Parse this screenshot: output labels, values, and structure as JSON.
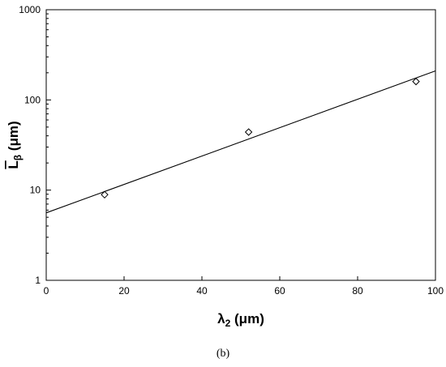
{
  "chart_data": {
    "type": "scatter",
    "xlabel": {
      "base": "λ",
      "sub": "2",
      "unit": " (μm)"
    },
    "ylabel": {
      "base": "L",
      "sub": "β",
      "unit": " (μm)"
    },
    "xlim": [
      0,
      100
    ],
    "ylim": [
      1,
      1000
    ],
    "yscale": "log",
    "grid": false,
    "xticks": [
      0,
      20,
      40,
      60,
      80,
      100
    ],
    "xtick_labels": [
      "0",
      "20",
      "40",
      "60",
      "80",
      "100"
    ],
    "yticks": [
      1,
      10,
      100,
      1000
    ],
    "ytick_labels": [
      "1",
      "10",
      "100",
      "1000"
    ],
    "points": [
      {
        "x": 15,
        "y": 8.9
      },
      {
        "x": 52,
        "y": 44
      },
      {
        "x": 95,
        "y": 160
      }
    ],
    "fit_line": {
      "x": [
        0,
        100
      ],
      "y": [
        5.6,
        210
      ]
    },
    "marker": "diamond-open"
  },
  "caption": "(b)"
}
